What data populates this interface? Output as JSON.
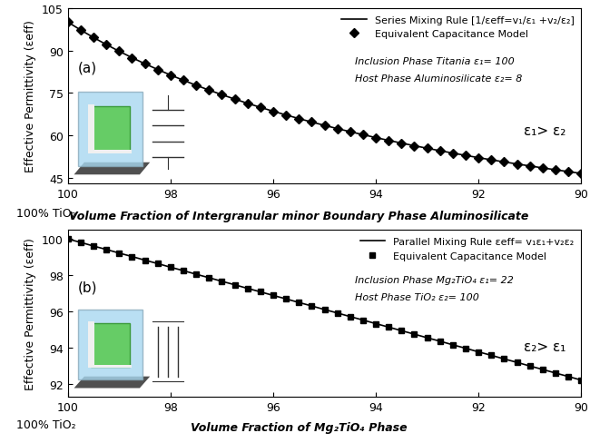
{
  "chart_data": [
    {
      "type": "line",
      "y_label": "Effective Permittivity (εeff)",
      "x_label": "Volume Fraction of Intergranular minor Boundary Phase Aluminosilicate",
      "annotations": [
        "(a)",
        "Inclusion Phase Titania ε₁= 100",
        "Host Phase Aluminosilicate ε₂= 8",
        "ε₁> ε₂",
        "100% TiO₂"
      ],
      "xlim": [
        100,
        90
      ],
      "xticks": [
        100,
        98,
        96,
        94,
        92,
        90
      ],
      "ylim": [
        43,
        105
      ],
      "yticks": [
        45,
        60,
        75,
        90,
        105
      ],
      "legend": "upper right",
      "x": [
        100,
        99.75,
        99.5,
        99.25,
        99,
        98.75,
        98.5,
        98.25,
        98,
        97.75,
        97.5,
        97.25,
        97,
        96.75,
        96.5,
        96.25,
        96,
        95.75,
        95.5,
        95.25,
        95,
        94.75,
        94.5,
        94.25,
        94,
        93.75,
        93.5,
        93.25,
        93,
        92.75,
        92.5,
        92.25,
        92,
        91.75,
        91.5,
        91.25,
        91,
        90.75,
        90.5,
        90.25,
        90
      ],
      "series": [
        {
          "name": "Series Mixing Rule [1/εeff=v₁/ε₁ +v₂/ε₂]",
          "type": "line",
          "color": "#000000",
          "line_style": "solid",
          "values": [
            100,
            97.21,
            94.56,
            92.06,
            89.69,
            87.43,
            85.29,
            83.25,
            81.3,
            79.44,
            77.67,
            75.97,
            74.35,
            72.79,
            71.3,
            69.87,
            68.49,
            67.17,
            65.9,
            64.67,
            63.49,
            62.35,
            61.26,
            60.2,
            59.17,
            58.18,
            57.22,
            56.3,
            55.4,
            54.53,
            53.69,
            52.87,
            52.08,
            51.31,
            50.57,
            49.84,
            49.14,
            48.46,
            47.79,
            47.14,
            46.51
          ]
        },
        {
          "name": "Equivalent Capacitance Model",
          "type": "scatter",
          "color": "#000000",
          "marker": "diamond",
          "values": [
            100,
            97.21,
            94.56,
            92.06,
            89.69,
            87.43,
            85.29,
            83.25,
            81.3,
            79.44,
            77.67,
            75.97,
            74.35,
            72.79,
            71.3,
            69.87,
            68.49,
            67.17,
            65.9,
            64.67,
            63.49,
            62.35,
            61.26,
            60.2,
            59.17,
            58.18,
            57.22,
            56.3,
            55.4,
            54.53,
            53.69,
            52.87,
            52.08,
            51.31,
            50.57,
            49.84,
            49.14,
            48.46,
            47.79,
            47.14,
            46.51
          ]
        }
      ]
    },
    {
      "type": "line",
      "y_label": "Effective Permittivity (εeff)",
      "x_label": "Volume Fraction of Mg₂TiO₄ Phase",
      "annotations": [
        "(b)",
        "Inclusion Phase Mg₂TiO₄ ε₁= 22",
        "Host Phase TiO₂ ε₂= 100",
        "ε₂> ε₁",
        "100% TiO₂"
      ],
      "xlim": [
        100,
        90
      ],
      "xticks": [
        100,
        98,
        96,
        94,
        92,
        90
      ],
      "ylim": [
        91.3,
        100.5
      ],
      "yticks": [
        92,
        94,
        96,
        98,
        100
      ],
      "legend": "upper right",
      "x": [
        100,
        99.75,
        99.5,
        99.25,
        99,
        98.75,
        98.5,
        98.25,
        98,
        97.75,
        97.5,
        97.25,
        97,
        96.75,
        96.5,
        96.25,
        96,
        95.75,
        95.5,
        95.25,
        95,
        94.75,
        94.5,
        94.25,
        94,
        93.75,
        93.5,
        93.25,
        93,
        92.75,
        92.5,
        92.25,
        92,
        91.75,
        91.5,
        91.25,
        91,
        90.75,
        90.5,
        90.25,
        90
      ],
      "series": [
        {
          "name": "Parallel Mixing Rule εeff= v₁ε₁+v₂ε₂",
          "type": "line",
          "color": "#000000",
          "line_style": "solid",
          "values": [
            100,
            99.81,
            99.61,
            99.42,
            99.22,
            99.03,
            98.83,
            98.64,
            98.44,
            98.25,
            98.05,
            97.86,
            97.66,
            97.47,
            97.27,
            97.08,
            96.88,
            96.69,
            96.49,
            96.3,
            96.1,
            95.91,
            95.71,
            95.52,
            95.32,
            95.13,
            94.93,
            94.74,
            94.54,
            94.35,
            94.15,
            93.96,
            93.76,
            93.57,
            93.37,
            93.18,
            92.98,
            92.79,
            92.59,
            92.4,
            92.2
          ]
        },
        {
          "name": "Equivalent Capacitance Model",
          "type": "scatter",
          "color": "#000000",
          "marker": "square",
          "values": [
            100,
            99.81,
            99.61,
            99.42,
            99.22,
            99.03,
            98.83,
            98.64,
            98.44,
            98.25,
            98.05,
            97.86,
            97.66,
            97.47,
            97.27,
            97.08,
            96.88,
            96.69,
            96.49,
            96.3,
            96.1,
            95.91,
            95.71,
            95.52,
            95.32,
            95.13,
            94.93,
            94.74,
            94.54,
            94.35,
            94.15,
            93.96,
            93.76,
            93.57,
            93.37,
            93.18,
            92.98,
            92.79,
            92.59,
            92.4,
            92.2
          ]
        }
      ]
    }
  ]
}
